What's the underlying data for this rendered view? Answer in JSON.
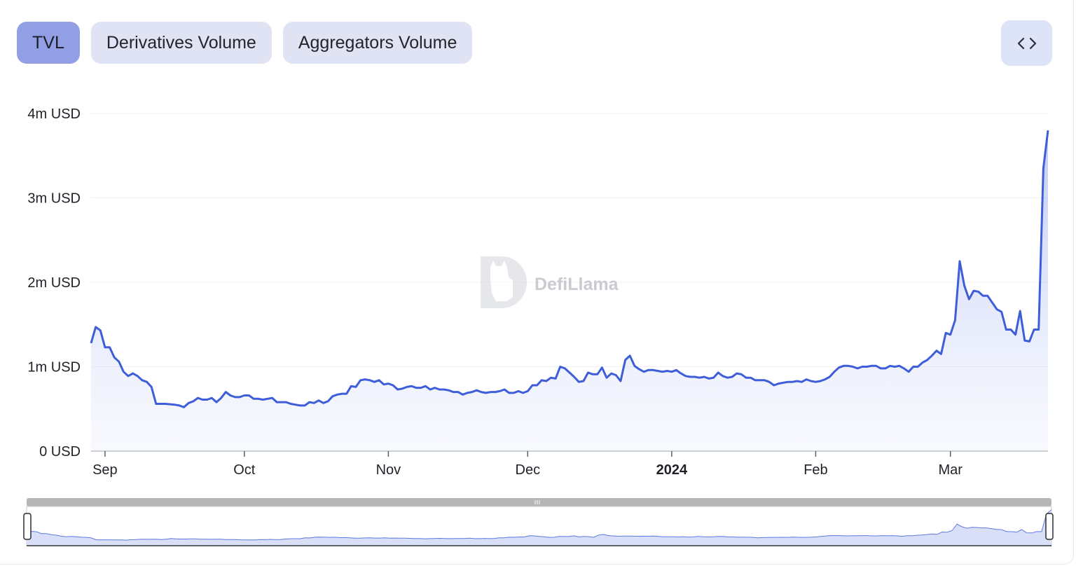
{
  "tabs": [
    {
      "label": "TVL",
      "active": true
    },
    {
      "label": "Derivatives Volume",
      "active": false
    },
    {
      "label": "Aggregators Volume",
      "active": false
    }
  ],
  "embed_icon": "code-icon",
  "watermark": {
    "text": "DefiLlama",
    "icon": "llama-logo"
  },
  "colors": {
    "line": "#3e5ed9",
    "active_tab": "#929fe4",
    "tab": "#dfe3f4",
    "embed_button": "#dde4f8"
  },
  "chart_data": {
    "type": "area",
    "y_ticks": [
      {
        "value": 0,
        "label": "0 USD"
      },
      {
        "value": 1000000,
        "label": "1m USD"
      },
      {
        "value": 2000000,
        "label": "2m USD"
      },
      {
        "value": 3000000,
        "label": "3m USD"
      },
      {
        "value": 4000000,
        "label": "4m USD"
      }
    ],
    "ylim": [
      0,
      4000000
    ],
    "xlim": [
      "2023-08-29",
      "2024-03-22"
    ],
    "x_ticks": [
      {
        "date": "2023-09-01",
        "label": "Sep",
        "bold": false
      },
      {
        "date": "2023-10-01",
        "label": "Oct",
        "bold": false
      },
      {
        "date": "2023-11-01",
        "label": "Nov",
        "bold": false
      },
      {
        "date": "2023-12-01",
        "label": "Dec",
        "bold": false
      },
      {
        "date": "2024-01-01",
        "label": "2024",
        "bold": true
      },
      {
        "date": "2024-02-01",
        "label": "Feb",
        "bold": false
      },
      {
        "date": "2024-03-01",
        "label": "Mar",
        "bold": false
      }
    ],
    "grid": true,
    "series": [
      {
        "points": [
          [
            "2023-08-29",
            1280000
          ],
          [
            "2023-08-30",
            1470000
          ],
          [
            "2023-08-31",
            1430000
          ],
          [
            "2023-09-01",
            1230000
          ],
          [
            "2023-09-02",
            1230000
          ],
          [
            "2023-09-03",
            1110000
          ],
          [
            "2023-09-04",
            1060000
          ],
          [
            "2023-09-05",
            940000
          ],
          [
            "2023-09-06",
            890000
          ],
          [
            "2023-09-07",
            920000
          ],
          [
            "2023-09-08",
            890000
          ],
          [
            "2023-09-09",
            840000
          ],
          [
            "2023-09-10",
            820000
          ],
          [
            "2023-09-11",
            760000
          ],
          [
            "2023-09-12",
            560000
          ],
          [
            "2023-09-14",
            560000
          ],
          [
            "2023-09-16",
            550000
          ],
          [
            "2023-09-17",
            540000
          ],
          [
            "2023-09-18",
            520000
          ],
          [
            "2023-09-19",
            570000
          ],
          [
            "2023-09-20",
            590000
          ],
          [
            "2023-09-21",
            630000
          ],
          [
            "2023-09-22",
            610000
          ],
          [
            "2023-09-23",
            610000
          ],
          [
            "2023-09-24",
            630000
          ],
          [
            "2023-09-25",
            580000
          ],
          [
            "2023-09-26",
            630000
          ],
          [
            "2023-09-27",
            700000
          ],
          [
            "2023-09-28",
            660000
          ],
          [
            "2023-09-29",
            640000
          ],
          [
            "2023-09-30",
            640000
          ],
          [
            "2023-10-01",
            660000
          ],
          [
            "2023-10-02",
            660000
          ],
          [
            "2023-10-03",
            620000
          ],
          [
            "2023-10-04",
            620000
          ],
          [
            "2023-10-05",
            610000
          ],
          [
            "2023-10-06",
            620000
          ],
          [
            "2023-10-07",
            630000
          ],
          [
            "2023-10-08",
            580000
          ],
          [
            "2023-10-09",
            580000
          ],
          [
            "2023-10-10",
            580000
          ],
          [
            "2023-10-11",
            560000
          ],
          [
            "2023-10-12",
            550000
          ],
          [
            "2023-10-13",
            540000
          ],
          [
            "2023-10-14",
            540000
          ],
          [
            "2023-10-15",
            580000
          ],
          [
            "2023-10-16",
            570000
          ],
          [
            "2023-10-17",
            600000
          ],
          [
            "2023-10-18",
            570000
          ],
          [
            "2023-10-19",
            590000
          ],
          [
            "2023-10-20",
            650000
          ],
          [
            "2023-10-21",
            670000
          ],
          [
            "2023-10-22",
            680000
          ],
          [
            "2023-10-23",
            680000
          ],
          [
            "2023-10-24",
            770000
          ],
          [
            "2023-10-25",
            760000
          ],
          [
            "2023-10-26",
            840000
          ],
          [
            "2023-10-27",
            850000
          ],
          [
            "2023-10-28",
            840000
          ],
          [
            "2023-10-29",
            820000
          ],
          [
            "2023-10-30",
            840000
          ],
          [
            "2023-10-31",
            790000
          ],
          [
            "2023-11-01",
            800000
          ],
          [
            "2023-11-02",
            780000
          ],
          [
            "2023-11-03",
            730000
          ],
          [
            "2023-11-04",
            740000
          ],
          [
            "2023-11-05",
            760000
          ],
          [
            "2023-11-06",
            770000
          ],
          [
            "2023-11-07",
            750000
          ],
          [
            "2023-11-08",
            750000
          ],
          [
            "2023-11-09",
            770000
          ],
          [
            "2023-11-10",
            730000
          ],
          [
            "2023-11-11",
            750000
          ],
          [
            "2023-11-12",
            730000
          ],
          [
            "2023-11-13",
            730000
          ],
          [
            "2023-11-14",
            720000
          ],
          [
            "2023-11-15",
            700000
          ],
          [
            "2023-11-16",
            700000
          ],
          [
            "2023-11-17",
            670000
          ],
          [
            "2023-11-18",
            690000
          ],
          [
            "2023-11-19",
            700000
          ],
          [
            "2023-11-20",
            720000
          ],
          [
            "2023-11-21",
            700000
          ],
          [
            "2023-11-22",
            690000
          ],
          [
            "2023-11-23",
            700000
          ],
          [
            "2023-11-24",
            700000
          ],
          [
            "2023-11-25",
            710000
          ],
          [
            "2023-11-26",
            730000
          ],
          [
            "2023-11-27",
            690000
          ],
          [
            "2023-11-28",
            690000
          ],
          [
            "2023-11-29",
            710000
          ],
          [
            "2023-11-30",
            690000
          ],
          [
            "2023-12-01",
            710000
          ],
          [
            "2023-12-02",
            780000
          ],
          [
            "2023-12-03",
            780000
          ],
          [
            "2023-12-04",
            840000
          ],
          [
            "2023-12-05",
            830000
          ],
          [
            "2023-12-06",
            870000
          ],
          [
            "2023-12-07",
            860000
          ],
          [
            "2023-12-08",
            1000000
          ],
          [
            "2023-12-09",
            980000
          ],
          [
            "2023-12-10",
            930000
          ],
          [
            "2023-12-11",
            880000
          ],
          [
            "2023-12-12",
            820000
          ],
          [
            "2023-12-13",
            830000
          ],
          [
            "2023-12-14",
            930000
          ],
          [
            "2023-12-15",
            910000
          ],
          [
            "2023-12-16",
            910000
          ],
          [
            "2023-12-17",
            990000
          ],
          [
            "2023-12-18",
            870000
          ],
          [
            "2023-12-19",
            920000
          ],
          [
            "2023-12-20",
            900000
          ],
          [
            "2023-12-21",
            830000
          ],
          [
            "2023-12-22",
            1080000
          ],
          [
            "2023-12-23",
            1130000
          ],
          [
            "2023-12-24",
            1010000
          ],
          [
            "2023-12-25",
            970000
          ],
          [
            "2023-12-26",
            940000
          ],
          [
            "2023-12-27",
            960000
          ],
          [
            "2023-12-28",
            960000
          ],
          [
            "2023-12-29",
            950000
          ],
          [
            "2023-12-30",
            940000
          ],
          [
            "2023-12-31",
            950000
          ],
          [
            "2024-01-01",
            940000
          ],
          [
            "2024-01-02",
            960000
          ],
          [
            "2024-01-03",
            920000
          ],
          [
            "2024-01-04",
            890000
          ],
          [
            "2024-01-05",
            880000
          ],
          [
            "2024-01-06",
            880000
          ],
          [
            "2024-01-07",
            870000
          ],
          [
            "2024-01-08",
            880000
          ],
          [
            "2024-01-09",
            860000
          ],
          [
            "2024-01-10",
            870000
          ],
          [
            "2024-01-11",
            930000
          ],
          [
            "2024-01-12",
            890000
          ],
          [
            "2024-01-13",
            870000
          ],
          [
            "2024-01-14",
            880000
          ],
          [
            "2024-01-15",
            920000
          ],
          [
            "2024-01-16",
            910000
          ],
          [
            "2024-01-17",
            870000
          ],
          [
            "2024-01-18",
            870000
          ],
          [
            "2024-01-19",
            840000
          ],
          [
            "2024-01-20",
            840000
          ],
          [
            "2024-01-21",
            840000
          ],
          [
            "2024-01-22",
            820000
          ],
          [
            "2024-01-23",
            780000
          ],
          [
            "2024-01-24",
            800000
          ],
          [
            "2024-01-25",
            810000
          ],
          [
            "2024-01-26",
            820000
          ],
          [
            "2024-01-27",
            820000
          ],
          [
            "2024-01-28",
            830000
          ],
          [
            "2024-01-29",
            820000
          ],
          [
            "2024-01-30",
            850000
          ],
          [
            "2024-01-31",
            830000
          ],
          [
            "2024-02-01",
            820000
          ],
          [
            "2024-02-02",
            830000
          ],
          [
            "2024-02-03",
            850000
          ],
          [
            "2024-02-04",
            880000
          ],
          [
            "2024-02-05",
            940000
          ],
          [
            "2024-02-06",
            990000
          ],
          [
            "2024-02-07",
            1010000
          ],
          [
            "2024-02-08",
            1010000
          ],
          [
            "2024-02-09",
            1000000
          ],
          [
            "2024-02-10",
            980000
          ],
          [
            "2024-02-11",
            1000000
          ],
          [
            "2024-02-12",
            1000000
          ],
          [
            "2024-02-13",
            1010000
          ],
          [
            "2024-02-14",
            1010000
          ],
          [
            "2024-02-15",
            980000
          ],
          [
            "2024-02-16",
            980000
          ],
          [
            "2024-02-17",
            1010000
          ],
          [
            "2024-02-18",
            1000000
          ],
          [
            "2024-02-19",
            1010000
          ],
          [
            "2024-02-20",
            980000
          ],
          [
            "2024-02-21",
            940000
          ],
          [
            "2024-02-22",
            1000000
          ],
          [
            "2024-02-23",
            1000000
          ],
          [
            "2024-02-24",
            1050000
          ],
          [
            "2024-02-25",
            1080000
          ],
          [
            "2024-02-26",
            1130000
          ],
          [
            "2024-02-27",
            1190000
          ],
          [
            "2024-02-28",
            1150000
          ],
          [
            "2024-02-29",
            1400000
          ],
          [
            "2024-03-01",
            1380000
          ],
          [
            "2024-03-02",
            1550000
          ],
          [
            "2024-03-03",
            2250000
          ],
          [
            "2024-03-04",
            1960000
          ],
          [
            "2024-03-05",
            1800000
          ],
          [
            "2024-03-06",
            1900000
          ],
          [
            "2024-03-07",
            1890000
          ],
          [
            "2024-03-08",
            1840000
          ],
          [
            "2024-03-09",
            1840000
          ],
          [
            "2024-03-10",
            1760000
          ],
          [
            "2024-03-11",
            1680000
          ],
          [
            "2024-03-12",
            1650000
          ],
          [
            "2024-03-13",
            1440000
          ],
          [
            "2024-03-14",
            1440000
          ],
          [
            "2024-03-15",
            1380000
          ],
          [
            "2024-03-16",
            1660000
          ],
          [
            "2024-03-17",
            1310000
          ],
          [
            "2024-03-18",
            1300000
          ],
          [
            "2024-03-19",
            1440000
          ],
          [
            "2024-03-20",
            1440000
          ],
          [
            "2024-03-21",
            3350000
          ],
          [
            "2024-03-22",
            3800000
          ]
        ]
      }
    ]
  }
}
